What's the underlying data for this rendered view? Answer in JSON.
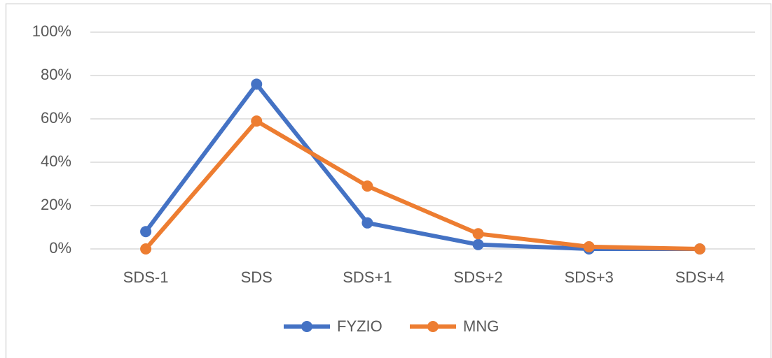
{
  "chart_data": {
    "type": "line",
    "categories": [
      "SDS-1",
      "SDS",
      "SDS+1",
      "SDS+2",
      "SDS+3",
      "SDS+4"
    ],
    "series": [
      {
        "name": "FYZIO",
        "color": "#4472c4",
        "values": [
          8,
          76,
          12,
          2,
          0,
          0
        ]
      },
      {
        "name": "MNG",
        "color": "#ed7d31",
        "values": [
          0,
          59,
          29,
          7,
          1,
          0
        ]
      }
    ],
    "ylim": [
      0,
      100
    ],
    "yticks": [
      {
        "value": 0,
        "label": "0%"
      },
      {
        "value": 20,
        "label": "20%"
      },
      {
        "value": 40,
        "label": "40%"
      },
      {
        "value": 60,
        "label": "60%"
      },
      {
        "value": 80,
        "label": "80%"
      },
      {
        "value": 100,
        "label": "100%"
      }
    ],
    "grid": true,
    "legend": "bottom"
  }
}
